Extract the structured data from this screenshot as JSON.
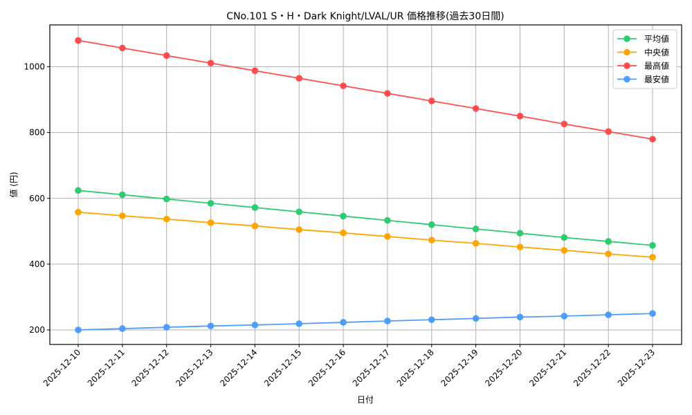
{
  "chart_data": {
    "type": "line",
    "title": "CNo.101 S・H・Dark Knight/LVAL/UR 価格推移(過去30日間)",
    "xlabel": "日付",
    "ylabel": "値 (円)",
    "categories": [
      "2025-12-10",
      "2025-12-11",
      "2025-12-12",
      "2025-12-13",
      "2025-12-14",
      "2025-12-15",
      "2025-12-16",
      "2025-12-17",
      "2025-12-18",
      "2025-12-19",
      "2025-12-20",
      "2025-12-21",
      "2025-12-22",
      "2025-12-23"
    ],
    "yticks": [
      200,
      400,
      600,
      800,
      1000
    ],
    "ylim": [
      155,
      1125
    ],
    "grid": true,
    "legend_position": "upper right",
    "series": [
      {
        "name": "平均値",
        "color": "#2ecc71",
        "values": [
          624,
          611,
          598,
          585,
          572,
          559,
          546,
          533,
          520,
          507,
          494,
          481,
          469,
          457
        ]
      },
      {
        "name": "中央値",
        "color": "#ffa500",
        "values": [
          558,
          547,
          537,
          526,
          516,
          505,
          495,
          484,
          473,
          463,
          452,
          442,
          431,
          421
        ]
      },
      {
        "name": "最高値",
        "color": "#ff4d4d",
        "values": [
          1080,
          1057,
          1034,
          1011,
          988,
          965,
          942,
          919,
          896,
          873,
          850,
          826,
          803,
          780
        ]
      },
      {
        "name": "最安値",
        "color": "#4d9dff",
        "values": [
          200,
          204,
          208,
          212,
          215,
          219,
          223,
          227,
          231,
          235,
          239,
          242,
          246,
          250
        ]
      }
    ]
  }
}
